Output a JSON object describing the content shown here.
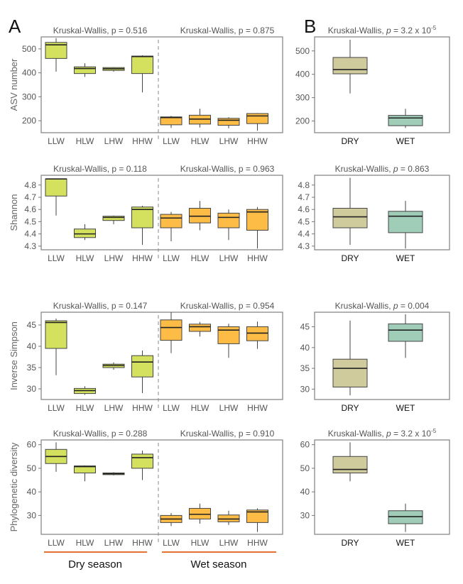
{
  "panel_letters": {
    "A": "A",
    "B": "B"
  },
  "season_labels": {
    "dry": "Dry season",
    "wet": "Wet season"
  },
  "colors": {
    "dry_box": "#d4e15f",
    "wet_box": "#fcbc45",
    "dry_combined": "#cfcb9d",
    "wet_combined": "#9fcdb8",
    "frame": "#888888",
    "season_line": "#e4732e",
    "divider": "#8a8a8a"
  },
  "chart_data": [
    {
      "type": "boxplot",
      "panel": "A",
      "row": 0,
      "ylabel": "ASV number",
      "ylim": [
        150,
        550
      ],
      "yticks": [
        200,
        300,
        400,
        500
      ],
      "categories": [
        "LLW",
        "HLW",
        "LHW",
        "HHW",
        "LLW",
        "HLW",
        "LHW",
        "HHW"
      ],
      "groups": [
        "dry",
        "dry",
        "dry",
        "dry",
        "wet",
        "wet",
        "wet",
        "wet"
      ],
      "stat_left": "Kruskal-Wallis, p = 0.516",
      "stat_right": "Kruskal-Wallis, p = 0.875",
      "boxes": [
        {
          "min": 405,
          "q1": 460,
          "median": 517,
          "q3": 527,
          "max": 545
        },
        {
          "min": 383,
          "q1": 397,
          "median": 418,
          "q3": 425,
          "max": 440
        },
        {
          "min": 405,
          "q1": 410,
          "median": 417,
          "q3": 422,
          "max": 424
        },
        {
          "min": 318,
          "q1": 397,
          "median": 468,
          "q3": 470,
          "max": 473
        },
        {
          "min": 170,
          "q1": 183,
          "median": 213,
          "q3": 216,
          "max": 220
        },
        {
          "min": 172,
          "q1": 186,
          "median": 207,
          "q3": 223,
          "max": 250
        },
        {
          "min": 168,
          "q1": 181,
          "median": 202,
          "q3": 210,
          "max": 215
        },
        {
          "min": 158,
          "q1": 188,
          "median": 220,
          "q3": 230,
          "max": 232
        }
      ]
    },
    {
      "type": "boxplot",
      "panel": "A",
      "row": 1,
      "ylabel": "Shannon",
      "ylim": [
        4.27,
        4.88
      ],
      "yticks": [
        4.3,
        4.4,
        4.5,
        4.6,
        4.7,
        4.8
      ],
      "categories": [
        "LLW",
        "HLW",
        "LHW",
        "HHW",
        "LLW",
        "HLW",
        "LHW",
        "HHW"
      ],
      "groups": [
        "dry",
        "dry",
        "dry",
        "dry",
        "wet",
        "wet",
        "wet",
        "wet"
      ],
      "stat_left": "Kruskal-Wallis, p = 0.118",
      "stat_right": "Kruskal-Wallis, p = 0.963",
      "boxes": [
        {
          "min": 4.55,
          "q1": 4.71,
          "median": 4.85,
          "q3": 4.85,
          "max": 4.85
        },
        {
          "min": 4.35,
          "q1": 4.37,
          "median": 4.4,
          "q3": 4.44,
          "max": 4.48
        },
        {
          "min": 4.48,
          "q1": 4.51,
          "median": 4.535,
          "q3": 4.545,
          "max": 4.55
        },
        {
          "min": 4.31,
          "q1": 4.45,
          "median": 4.6,
          "q3": 4.62,
          "max": 4.63
        },
        {
          "min": 4.34,
          "q1": 4.45,
          "median": 4.53,
          "q3": 4.56,
          "max": 4.58
        },
        {
          "min": 4.43,
          "q1": 4.49,
          "median": 4.545,
          "q3": 4.61,
          "max": 4.67
        },
        {
          "min": 4.35,
          "q1": 4.45,
          "median": 4.535,
          "q3": 4.57,
          "max": 4.6
        },
        {
          "min": 4.28,
          "q1": 4.43,
          "median": 4.58,
          "q3": 4.6,
          "max": 4.62
        }
      ]
    },
    {
      "type": "boxplot",
      "panel": "A",
      "row": 2,
      "ylabel": "Inverse Simpson",
      "ylim": [
        27.5,
        48
      ],
      "yticks": [
        30,
        35,
        40,
        45
      ],
      "categories": [
        "LLW",
        "HLW",
        "LHW",
        "HHW",
        "LLW",
        "HLW",
        "LHW",
        "HHW"
      ],
      "groups": [
        "dry",
        "dry",
        "dry",
        "dry",
        "wet",
        "wet",
        "wet",
        "wet"
      ],
      "stat_left": "Kruskal-Wallis, p = 0.147",
      "stat_right": "Kruskal-Wallis, p = 0.954",
      "boxes": [
        {
          "min": 33.2,
          "q1": 39.5,
          "median": 45.6,
          "q3": 46.0,
          "max": 46.5
        },
        {
          "min": 28.6,
          "q1": 28.9,
          "median": 29.6,
          "q3": 30.1,
          "max": 30.6
        },
        {
          "min": 34.5,
          "q1": 35.0,
          "median": 35.5,
          "q3": 35.8,
          "max": 36.2
        },
        {
          "min": 29.0,
          "q1": 32.8,
          "median": 36.3,
          "q3": 37.8,
          "max": 39.0
        },
        {
          "min": 38.4,
          "q1": 41.4,
          "median": 44.4,
          "q3": 46.2,
          "max": 48.0
        },
        {
          "min": 42.3,
          "q1": 43.5,
          "median": 44.6,
          "q3": 45.2,
          "max": 45.7
        },
        {
          "min": 37.3,
          "q1": 40.6,
          "median": 43.8,
          "q3": 44.6,
          "max": 45.3
        },
        {
          "min": 39.4,
          "q1": 41.3,
          "median": 43.1,
          "q3": 44.6,
          "max": 45.8
        }
      ]
    },
    {
      "type": "boxplot",
      "panel": "A",
      "row": 3,
      "ylabel": "Phylogenetic diversity",
      "ylim": [
        22,
        62
      ],
      "yticks": [
        30,
        40,
        50,
        60
      ],
      "categories": [
        "LLW",
        "HLW",
        "LHW",
        "HHW",
        "LLW",
        "HLW",
        "LHW",
        "HHW"
      ],
      "groups": [
        "dry",
        "dry",
        "dry",
        "dry",
        "wet",
        "wet",
        "wet",
        "wet"
      ],
      "stat_left": "Kruskal-Wallis, p = 0.288",
      "stat_right": "Kruskal-Wallis, p = 0.910",
      "boxes": [
        {
          "min": 48.5,
          "q1": 52.0,
          "median": 55.0,
          "q3": 58.0,
          "max": 61.0
        },
        {
          "min": 44.5,
          "q1": 48.0,
          "median": 50.7,
          "q3": 51.0,
          "max": 51.2
        },
        {
          "min": 47.0,
          "q1": 47.3,
          "median": 47.7,
          "q3": 48.0,
          "max": 48.3
        },
        {
          "min": 45.0,
          "q1": 50.0,
          "median": 54.5,
          "q3": 56.0,
          "max": 57.5
        },
        {
          "min": 25.5,
          "q1": 27.0,
          "median": 28.5,
          "q3": 30.0,
          "max": 31.0
        },
        {
          "min": 26.5,
          "q1": 28.5,
          "median": 30.5,
          "q3": 33.0,
          "max": 35.0
        },
        {
          "min": 26.0,
          "q1": 27.3,
          "median": 28.5,
          "q3": 30.2,
          "max": 32.0
        },
        {
          "min": 23.0,
          "q1": 27.0,
          "median": 31.5,
          "q3": 32.3,
          "max": 33.0
        }
      ]
    },
    {
      "type": "boxplot",
      "panel": "B",
      "row": 0,
      "ylabel": "",
      "ylim": [
        150,
        560
      ],
      "yticks": [
        200,
        300,
        400,
        500
      ],
      "categories": [
        "DRY",
        "WET"
      ],
      "groups": [
        "dry",
        "wet"
      ],
      "stat_text": "Kruskal-Wallis, p = 3.2 x 10-5",
      "stat_prefix": "Kruskal-Wallis, ",
      "stat_p": "p",
      "stat_mid": " = 3.2 x 10",
      "stat_exp": "-5",
      "boxes": [
        {
          "min": 318,
          "q1": 402,
          "median": 420,
          "q3": 472,
          "max": 548
        },
        {
          "min": 170,
          "q1": 180,
          "median": 213,
          "q3": 224,
          "max": 252
        }
      ]
    },
    {
      "type": "boxplot",
      "panel": "B",
      "row": 1,
      "ylabel": "",
      "ylim": [
        4.27,
        4.88
      ],
      "yticks": [
        4.3,
        4.4,
        4.5,
        4.6,
        4.7,
        4.8
      ],
      "categories": [
        "DRY",
        "WET"
      ],
      "groups": [
        "dry",
        "wet"
      ],
      "stat_text": "Kruskal-Wallis, p = 0.863",
      "stat_prefix": "Kruskal-Wallis, ",
      "stat_p": "p",
      "stat_mid": " = 0.863",
      "stat_exp": "",
      "boxes": [
        {
          "min": 4.31,
          "q1": 4.45,
          "median": 4.54,
          "q3": 4.61,
          "max": 4.86
        },
        {
          "min": 4.28,
          "q1": 4.41,
          "median": 4.545,
          "q3": 4.585,
          "max": 4.67
        }
      ]
    },
    {
      "type": "boxplot",
      "panel": "B",
      "row": 2,
      "ylabel": "",
      "ylim": [
        27.5,
        48.5
      ],
      "yticks": [
        30,
        35,
        40,
        45
      ],
      "categories": [
        "DRY",
        "WET"
      ],
      "groups": [
        "dry",
        "wet"
      ],
      "stat_text": "Kruskal-Wallis, p = 0.004",
      "stat_prefix": "Kruskal-Wallis, ",
      "stat_p": "p",
      "stat_mid": " = 0.004",
      "stat_exp": "",
      "boxes": [
        {
          "min": 28.5,
          "q1": 30.5,
          "median": 35.0,
          "q3": 37.2,
          "max": 46.5
        },
        {
          "min": 37.5,
          "q1": 41.5,
          "median": 44.2,
          "q3": 45.7,
          "max": 48.0
        }
      ]
    },
    {
      "type": "boxplot",
      "panel": "B",
      "row": 3,
      "ylabel": "",
      "ylim": [
        22,
        62
      ],
      "yticks": [
        30,
        40,
        50,
        60
      ],
      "categories": [
        "DRY",
        "WET"
      ],
      "groups": [
        "dry",
        "wet"
      ],
      "stat_text": "Kruskal-Wallis, p = 3.2 x 10-5",
      "stat_prefix": "Kruskal-Wallis, ",
      "stat_p": "p",
      "stat_mid": " = 3.2 x 10",
      "stat_exp": "-5",
      "boxes": [
        {
          "min": 44.5,
          "q1": 48.0,
          "median": 49.5,
          "q3": 55.0,
          "max": 61.0
        },
        {
          "min": 23.0,
          "q1": 26.5,
          "median": 29.5,
          "q3": 32.0,
          "max": 35.0
        }
      ]
    }
  ]
}
